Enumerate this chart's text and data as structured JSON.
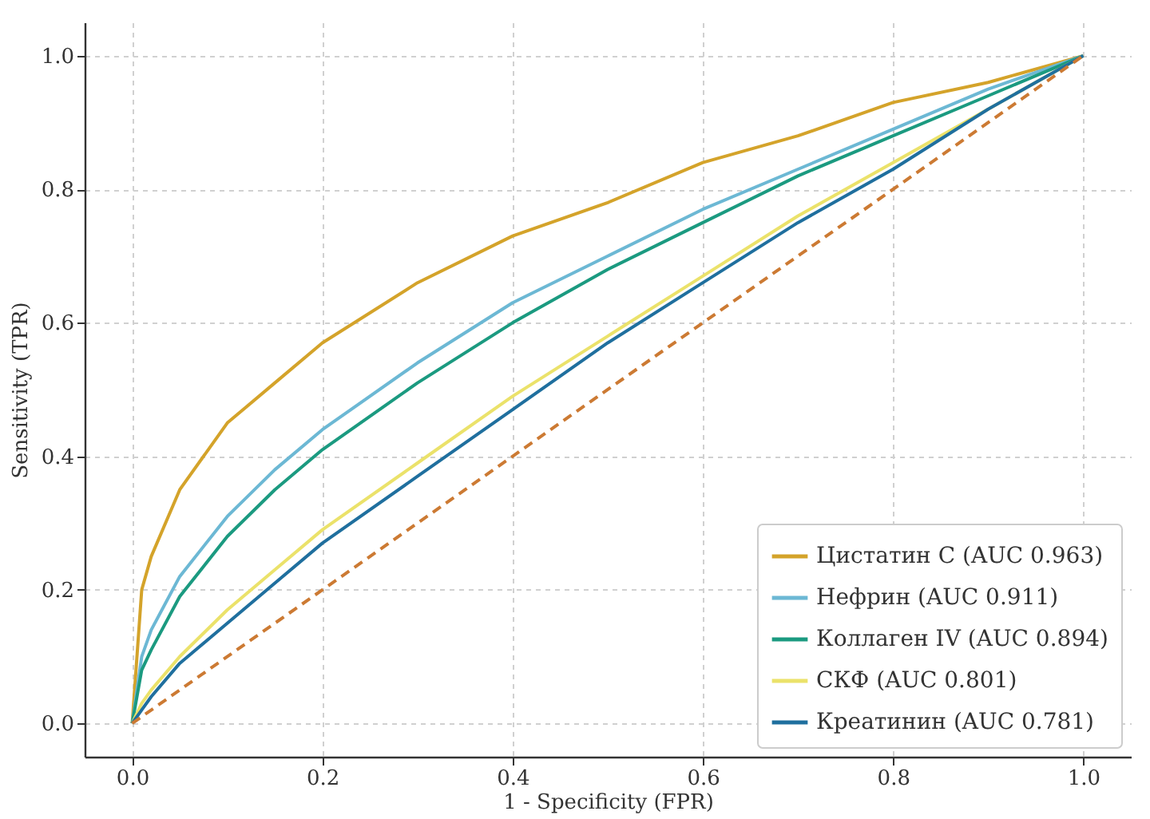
{
  "chart_data": {
    "type": "line",
    "xlabel": "1 - Specificity (FPR)",
    "ylabel": "Sensitivity (TPR)",
    "x": [
      0,
      0.01,
      0.02,
      0.05,
      0.1,
      0.15,
      0.2,
      0.3,
      0.4,
      0.5,
      0.6,
      0.7,
      0.8,
      0.9,
      1
    ],
    "series": [
      {
        "name": "Цистатин C (AUC 0.963)",
        "color": "#d4a32a",
        "values": [
          0,
          0.2,
          0.25,
          0.35,
          0.45,
          0.51,
          0.57,
          0.66,
          0.73,
          0.78,
          0.84,
          0.88,
          0.93,
          0.96,
          1
        ]
      },
      {
        "name": "Нефрин (AUC 0.911)",
        "color": "#6cb8d4",
        "values": [
          0,
          0.1,
          0.14,
          0.22,
          0.31,
          0.38,
          0.44,
          0.54,
          0.63,
          0.7,
          0.77,
          0.83,
          0.89,
          0.95,
          1
        ]
      },
      {
        "name": "Коллаген IV (AUC 0.894)",
        "color": "#1b9a80",
        "values": [
          0,
          0.08,
          0.11,
          0.19,
          0.28,
          0.35,
          0.41,
          0.51,
          0.6,
          0.68,
          0.75,
          0.82,
          0.88,
          0.94,
          1
        ]
      },
      {
        "name": "СКФ (AUC 0.801)",
        "color": "#ebe26a",
        "values": [
          0,
          0.03,
          0.05,
          0.1,
          0.17,
          0.23,
          0.29,
          0.39,
          0.49,
          0.58,
          0.67,
          0.76,
          0.84,
          0.92,
          1
        ]
      },
      {
        "name": "Креатинин (AUC 0.781)",
        "color": "#1f6f9e",
        "values": [
          0,
          0.02,
          0.04,
          0.09,
          0.15,
          0.21,
          0.27,
          0.37,
          0.47,
          0.57,
          0.66,
          0.75,
          0.83,
          0.92,
          1
        ]
      },
      {
        "color": "#cc7a33",
        "line_style": "dashed",
        "x": [
          0,
          1
        ],
        "values": [
          0,
          1
        ]
      }
    ],
    "xlim": [
      -0.05,
      1.05
    ],
    "ylim": [
      -0.05,
      1.05
    ],
    "xticks": [
      {
        "value": 0,
        "label": "0.0"
      },
      0.2,
      0.4,
      0.6,
      0.8,
      {
        "value": 1,
        "label": "1.0"
      }
    ],
    "yticks": [
      {
        "value": 0,
        "label": "0.0"
      },
      0.2,
      0.4,
      0.6,
      0.8,
      {
        "value": 1,
        "label": "1.0"
      }
    ],
    "grid": true,
    "legend": "bottom right",
    "marker": "none",
    "line_style": "solid"
  }
}
